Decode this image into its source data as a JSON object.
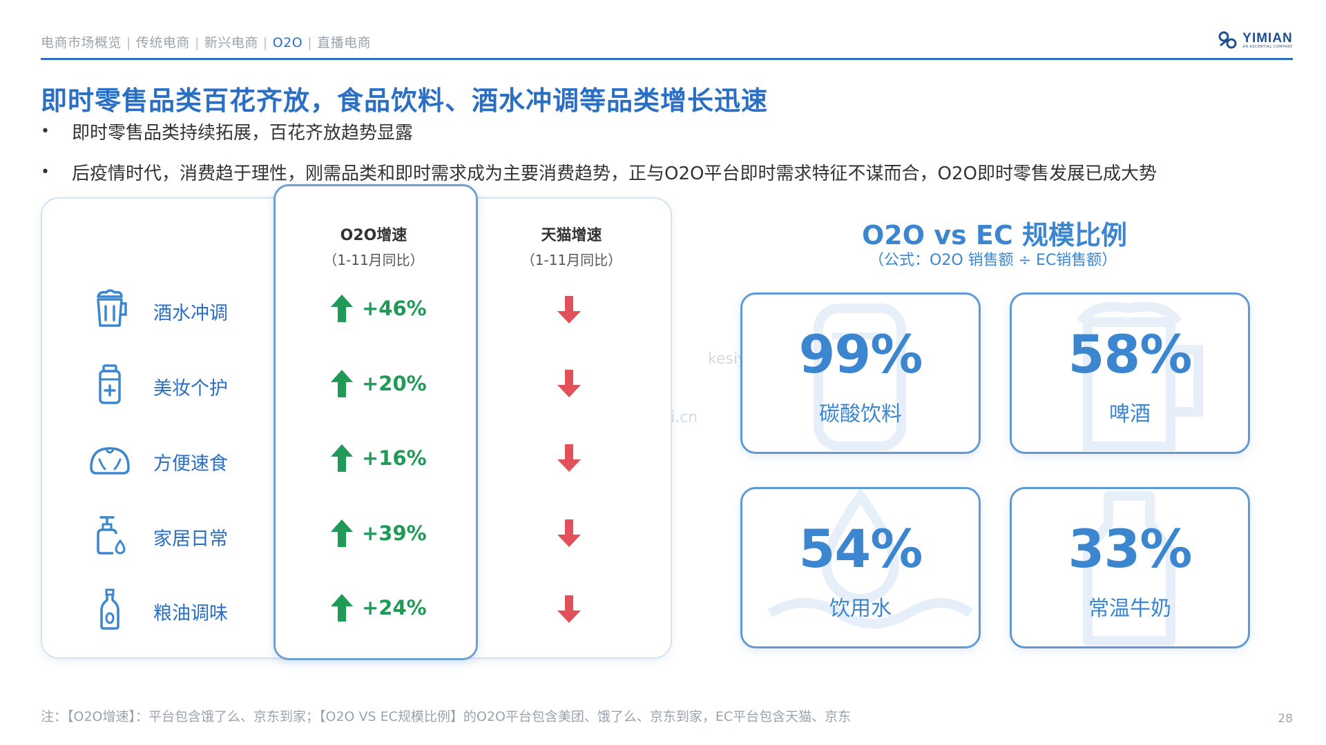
{
  "header": {
    "nav": [
      "电商市场概览",
      "传统电商",
      "新兴电商",
      "O2O",
      "直播电商"
    ],
    "active_index": 3,
    "logo_name": "YIMIAN",
    "logo_sub": "AN ASCENTIAL COMPANY"
  },
  "title": "即时零售品类百花齐放，食品饮料、酒水冲调等品类增长迅速",
  "bullets": [
    "即时零售品类持续拓展，百花齐放趋势显露",
    "后疫情时代，消费趋于理性，刚需品类和即时需求成为主要消费趋势，正与O2O平台即时需求特征不谋而合，O2O即时零售发展已成大势"
  ],
  "table": {
    "o2o_head": "O2O增速",
    "o2o_sub": "（1-11月同比）",
    "tmall_head": "天猫增速",
    "tmall_sub": "（1-11月同比）",
    "rows": [
      {
        "icon": "drink-cup-icon",
        "label": "酒水冲调",
        "o2o": "+46%",
        "tmall_trend": "down"
      },
      {
        "icon": "cosmetics-bottle-icon",
        "label": "美妆个护",
        "o2o": "+20%",
        "tmall_trend": "down"
      },
      {
        "icon": "bun-icon",
        "label": "方便速食",
        "o2o": "+16%",
        "tmall_trend": "down"
      },
      {
        "icon": "soap-dispenser-icon",
        "label": "家居日常",
        "o2o": "+39%",
        "tmall_trend": "down"
      },
      {
        "icon": "oil-bottle-icon",
        "label": "粮油调味",
        "o2o": "+24%",
        "tmall_trend": "down"
      }
    ]
  },
  "ratio": {
    "title": "O2O vs EC 规模比例",
    "subtitle": "（公式：O2O 销售额 ÷ EC销售额）",
    "cards": [
      {
        "value": "99%",
        "label": "碳酸饮料",
        "icon": "can-icon"
      },
      {
        "value": "58%",
        "label": "啤酒",
        "icon": "beer-mug-icon"
      },
      {
        "value": "54%",
        "label": "饮用水",
        "icon": "water-drop-icon"
      },
      {
        "value": "33%",
        "label": "常温牛奶",
        "icon": "milk-bottle-icon"
      }
    ]
  },
  "watermark": "kesiyi.cn",
  "note": "注：【O2O增速】：平台包含饿了么、京东到家；【O2O VS EC规模比例】的O2O平台包含美团、饿了么、京东到家，EC平台包含天猫、京东",
  "page_number": "28",
  "colors": {
    "accent": "#2a6fc4",
    "up": "#1f9a57",
    "down": "#e2515a"
  }
}
